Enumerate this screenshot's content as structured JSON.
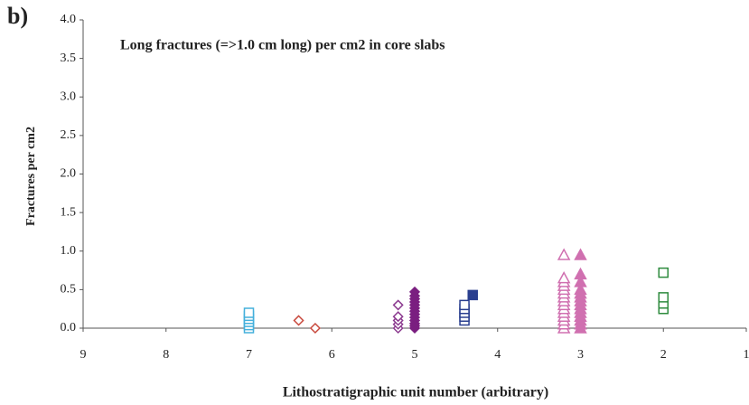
{
  "chart_data": {
    "type": "scatter",
    "panel_label": "b)",
    "annotation": "Long fractures (=>1.0 cm long) per cm2 in core slabs",
    "ylabel": "Fractures per cm2",
    "xlabel": "Lithostratigraphic unit number (arbitrary)",
    "xlim": [
      9,
      1
    ],
    "xticks": [
      9,
      8,
      7,
      6,
      5,
      4,
      3,
      2,
      1
    ],
    "ylim": [
      0,
      4
    ],
    "yticks": [
      {
        "value": 0,
        "label": "0.0"
      },
      {
        "value": 0.5,
        "label": "0.5"
      },
      {
        "value": 1,
        "label": "1.0"
      },
      {
        "value": 1.5,
        "label": "1.5"
      },
      {
        "value": 2,
        "label": "2.0"
      },
      {
        "value": 2.5,
        "label": "2.5"
      },
      {
        "value": 3,
        "label": "3.0"
      },
      {
        "value": 3.5,
        "label": "3.5"
      },
      {
        "value": 4,
        "label": "4.0"
      }
    ],
    "series": [
      {
        "marker": "square",
        "filled": false,
        "color": "#45b0dc",
        "x": [
          7,
          7,
          7,
          7,
          7,
          7
        ],
        "values": [
          0,
          0.04,
          0.08,
          0.12,
          0.16,
          0.2
        ]
      },
      {
        "marker": "diamond",
        "filled": false,
        "color": "#c8483c",
        "x": [
          6.4,
          6.2
        ],
        "values": [
          0.1,
          0
        ]
      },
      {
        "marker": "diamond",
        "filled": false,
        "color": "#8b3a8f",
        "x": [
          5.2,
          5.2,
          5.2,
          5.2,
          5.2
        ],
        "values": [
          0,
          0.05,
          0.1,
          0.15,
          0.3
        ]
      },
      {
        "marker": "diamond",
        "filled": true,
        "color": "#7a1f80",
        "x": [
          5,
          5,
          5,
          5,
          5,
          5,
          5,
          5,
          5,
          5,
          5,
          5,
          5
        ],
        "values": [
          0,
          0.03,
          0.06,
          0.1,
          0.14,
          0.18,
          0.22,
          0.26,
          0.3,
          0.34,
          0.38,
          0.42,
          0.47
        ]
      },
      {
        "marker": "square",
        "filled": false,
        "color": "#2a3f8f",
        "x": [
          4.4,
          4.4,
          4.4,
          4.4,
          4.4
        ],
        "values": [
          0.1,
          0.15,
          0.2,
          0.25,
          0.3
        ]
      },
      {
        "marker": "square",
        "filled": true,
        "color": "#2a3f8f",
        "x": [
          4.3
        ],
        "values": [
          0.43
        ]
      },
      {
        "marker": "triangle",
        "filled": false,
        "color": "#d070b0",
        "x": [
          3.2,
          3.2,
          3.2,
          3.2,
          3.2,
          3.2,
          3.2,
          3.2,
          3.2,
          3.2,
          3.2,
          3.2,
          3.2,
          3.2,
          3.2
        ],
        "values": [
          0,
          0.05,
          0.1,
          0.15,
          0.2,
          0.25,
          0.3,
          0.35,
          0.4,
          0.45,
          0.5,
          0.55,
          0.6,
          0.65,
          0.95
        ]
      },
      {
        "marker": "triangle",
        "filled": true,
        "color": "#d070b0",
        "x": [
          3,
          3,
          3,
          3,
          3,
          3,
          3,
          3,
          3,
          3,
          3,
          3,
          3,
          3
        ],
        "values": [
          0,
          0.05,
          0.1,
          0.15,
          0.2,
          0.25,
          0.3,
          0.35,
          0.4,
          0.45,
          0.5,
          0.6,
          0.7,
          0.95
        ]
      },
      {
        "marker": "square",
        "filled": false,
        "color": "#2e8b3e",
        "x": [
          2,
          2,
          2,
          2
        ],
        "values": [
          0.25,
          0.32,
          0.4,
          0.72
        ]
      }
    ]
  }
}
